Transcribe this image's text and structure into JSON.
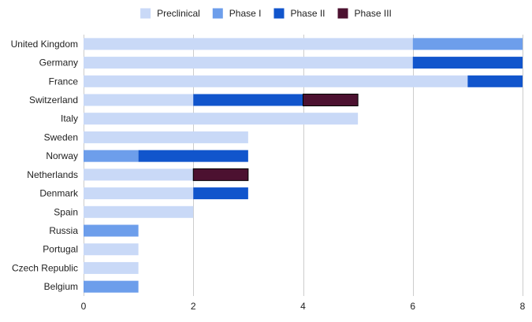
{
  "chart_data": {
    "type": "bar",
    "orientation": "horizontal",
    "stacked": true,
    "title": "",
    "xlabel": "",
    "ylabel": "",
    "categories": [
      "United Kingdom",
      "Germany",
      "France",
      "Switzerland",
      "Italy",
      "Sweden",
      "Norway",
      "Netherlands",
      "Denmark",
      "Spain",
      "Russia",
      "Portugal",
      "Czech Republic",
      "Belgium"
    ],
    "series": [
      {
        "name": "Preclinical",
        "color": "#c9d9f7",
        "values": [
          6,
          6,
          7,
          2,
          5,
          3,
          0,
          2,
          2,
          2,
          0,
          1,
          1,
          0
        ]
      },
      {
        "name": "Phase I",
        "color": "#6d9eeb",
        "values": [
          2,
          0,
          0,
          0,
          0,
          0,
          1,
          0,
          0,
          0,
          1,
          0,
          0,
          1
        ]
      },
      {
        "name": "Phase II",
        "color": "#1155cc",
        "values": [
          0,
          2,
          1,
          2,
          0,
          0,
          2,
          0,
          1,
          0,
          0,
          0,
          0,
          0
        ]
      },
      {
        "name": "Phase III",
        "color": "#4c1130",
        "values": [
          0,
          0,
          0,
          1,
          0,
          0,
          0,
          1,
          0,
          0,
          0,
          0,
          0,
          0
        ]
      }
    ],
    "xlim": [
      0,
      8
    ],
    "xticks": [
      0,
      2,
      4,
      6,
      8
    ],
    "grid": "vertical",
    "legend_position": "top-center"
  }
}
